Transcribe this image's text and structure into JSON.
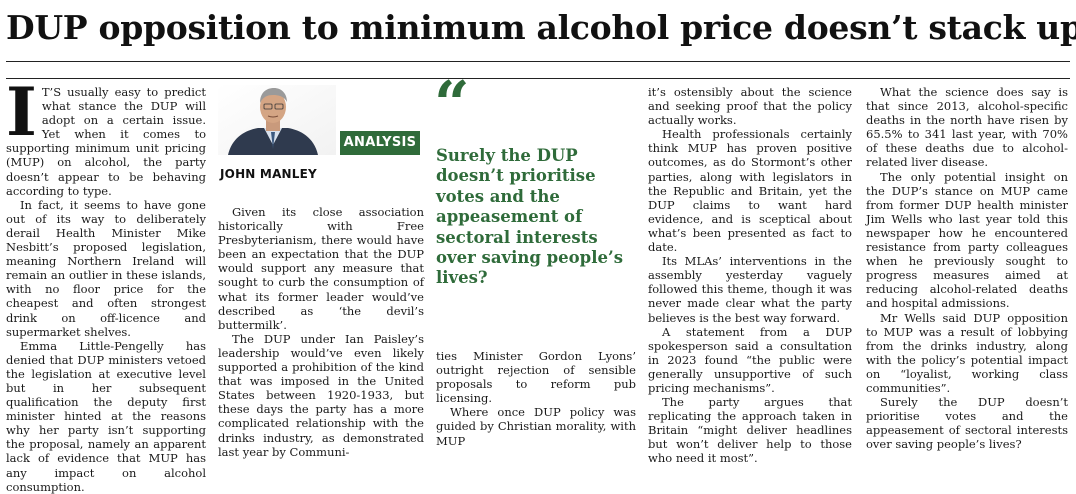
{
  "headline": "DUP opposition to minimum alcohol price doesn’t stack up",
  "badge": "ANALYSIS",
  "author": "JOHN MANLEY",
  "quote_mark": "“",
  "pull_quote": "Surely the DUP doesn’t prioritise votes and the appeasement of sectoral interests over saving people’s lives?",
  "photo": "author-portrait",
  "colors": {
    "accent": "#2f6b3a",
    "text": "#1a1a1a"
  },
  "col1": {
    "dropcap": "I",
    "p1": "T’S usually easy to predict what stance the DUP will adopt on a certain issue. Yet when it comes to supporting minimum unit pricing (MUP) on alcohol, the party doesn’t appear to be behaving according to type.",
    "p2": "In fact, it seems to have gone out of its way to deliberately derail Health Minister Mike Nesbitt’s proposed legislation, meaning Northern Ireland will remain an outlier in these islands, with no floor price for the cheapest and often strongest drink on off-licence and supermarket shelves.",
    "p3": "Emma Little-Pengelly has denied that DUP ministers vetoed the legislation at executive level but in her subsequent qualification the deputy first minister hinted at the reasons why her party isn’t supporting the proposal, namely an apparent lack of evidence that MUP has any impact on alcohol consumption."
  },
  "col2": {
    "p1": "Given its close association historically with Free Presbyterianism, there would have been an expectation that the DUP would support any measure that sought to curb the consumption of what its former leader would’ve described as ‘the devil’s buttermilk’.",
    "p2": "The DUP under Ian Paisley’s leadership would’ve even likely supported a prohibition of the kind that was imposed in the United States between 1920-1933, but these days the party has a more complicated relationship with the drinks industry, as demonstrated last year by Communi-"
  },
  "col3": {
    "p1": "ties Minister Gordon Lyons’ outright rejection of sensible proposals to reform pub licensing.",
    "p2": "Where once DUP policy was guided by Christian morality, with MUP"
  },
  "col4": {
    "p1": "it’s ostensibly about the science and seeking proof that the policy actually works.",
    "p2": "Health professionals certainly think MUP has proven positive outcomes, as do Stormont’s other parties, along with legislators in the Republic and Britain, yet the DUP claims to want hard evidence, and is sceptical about what’s been presented as fact to date.",
    "p3": "Its MLAs’ interventions in the assembly yesterday vaguely followed this theme, though it was never made clear what the party believes is the best way forward.",
    "p4": "A statement from a DUP spokesperson said a consultation in 2023 found “the public were generally unsupportive of such pricing mechanisms”.",
    "p5": "The party argues that replicating the approach taken in Britain “might deliver headlines but won’t deliver help to those who need it most”."
  },
  "col5": {
    "p1": "What the science does say is that since 2013, alcohol-specific deaths in the north have risen by 65.5% to 341 last year, with 70% of these deaths due to alcohol-related liver disease.",
    "p2": "The only potential insight on the DUP’s stance on MUP came from former DUP health minister Jim Wells who last year told this newspaper how he encountered resistance from party colleagues when he previously sought to progress measures aimed at reducing alcohol-related deaths and hospital admissions.",
    "p3": "Mr Wells said DUP opposition to MUP was a result of lobbying from the drinks industry, along with the policy’s potential impact on “loyalist, working class communities”.",
    "p4": "Surely the DUP doesn’t prioritise votes and the appeasement of sectoral interests over saving people’s lives?"
  }
}
